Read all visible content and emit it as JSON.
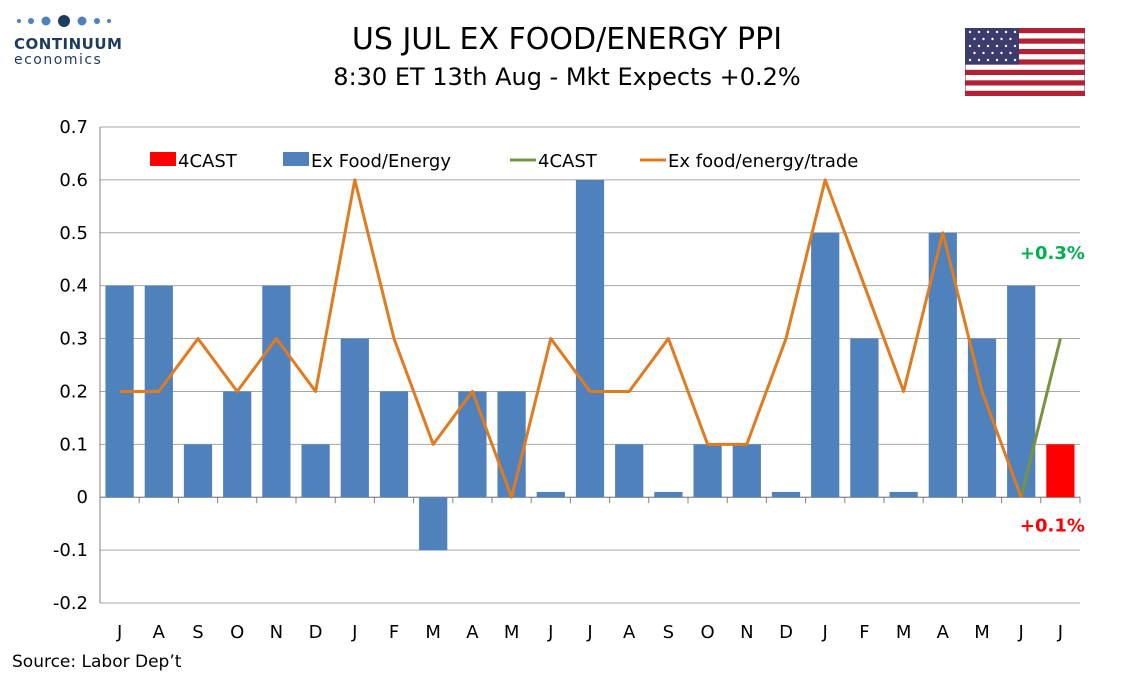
{
  "logo": {
    "brand": "CONTINUUM",
    "sub": "economics"
  },
  "header": {
    "title": "US JUL EX FOOD/ENERGY PPI",
    "subtitle": "8:30 ET 13th Aug - Mkt Expects +0.2%"
  },
  "source": "Source: Labor Dep’t",
  "colors": {
    "bar_main": "#4f81bd",
    "bar_forecast": "#ff0000",
    "line_trade": "#e07b1f",
    "line_forecast": "#77933c",
    "anno_up": "#00b050",
    "anno_down": "#ff0000"
  },
  "chart_data": {
    "type": "bar",
    "categories": [
      "J",
      "A",
      "S",
      "O",
      "N",
      "D",
      "J",
      "F",
      "M",
      "A",
      "M",
      "J",
      "J",
      "A",
      "S",
      "O",
      "N",
      "D",
      "J",
      "F",
      "M",
      "A",
      "M",
      "J",
      "J"
    ],
    "ylim": [
      -0.2,
      0.7
    ],
    "yticks": [
      "0.7",
      "0.6",
      "0.5",
      "0.4",
      "0.3",
      "0.2",
      "0.1",
      "0",
      "-0.1",
      "-0.2"
    ],
    "ytick_values": [
      0.7,
      0.6,
      0.5,
      0.4,
      0.3,
      0.2,
      0.1,
      0,
      -0.1,
      -0.2
    ],
    "grid": true,
    "legend_position": "top",
    "series": [
      {
        "name": "4CAST",
        "kind": "bar",
        "color": "#ff0000",
        "values": [
          null,
          null,
          null,
          null,
          null,
          null,
          null,
          null,
          null,
          null,
          null,
          null,
          null,
          null,
          null,
          null,
          null,
          null,
          null,
          null,
          null,
          null,
          null,
          null,
          0.1
        ]
      },
      {
        "name": "Ex Food/Energy",
        "kind": "bar",
        "color": "#4f81bd",
        "values": [
          0.4,
          0.4,
          0.1,
          0.2,
          0.4,
          0.1,
          0.3,
          0.2,
          -0.1,
          0.2,
          0.2,
          0.01,
          0.6,
          0.1,
          0.01,
          0.1,
          0.1,
          0.01,
          0.5,
          0.3,
          0.01,
          0.5,
          0.3,
          0.4,
          null
        ]
      },
      {
        "name": "4CAST",
        "kind": "line",
        "color": "#77933c",
        "values": [
          null,
          null,
          null,
          null,
          null,
          null,
          null,
          null,
          null,
          null,
          null,
          null,
          null,
          null,
          null,
          null,
          null,
          null,
          null,
          null,
          null,
          null,
          null,
          0.0,
          0.3
        ]
      },
      {
        "name": "Ex food/energy/trade",
        "kind": "line",
        "color": "#e07b1f",
        "values": [
          0.2,
          0.2,
          0.3,
          0.2,
          0.3,
          0.2,
          0.6,
          0.3,
          0.1,
          0.2,
          0.0,
          0.3,
          0.2,
          0.2,
          0.3,
          0.1,
          0.1,
          0.3,
          0.6,
          0.4,
          0.2,
          0.5,
          0.2,
          0.0,
          null
        ]
      }
    ],
    "annotations": [
      {
        "text": "+0.3%",
        "value": 0.3,
        "category_index": 24,
        "color": "#00b050"
      },
      {
        "text": "+0.1%",
        "value": 0.1,
        "category_index": 24,
        "color": "#ff0000"
      }
    ]
  }
}
